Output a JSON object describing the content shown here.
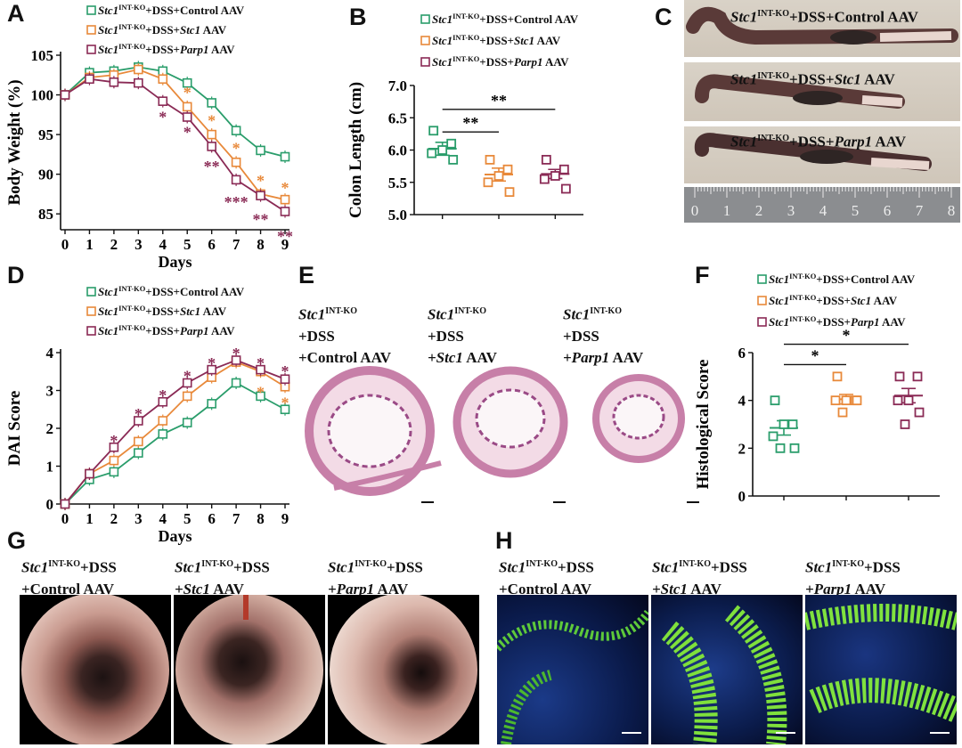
{
  "colors": {
    "control": "#2a9d6b",
    "stc1": "#e8893a",
    "parp1": "#8a2a55"
  },
  "groups": {
    "prefix": "Stc1",
    "sup": "INT-KO",
    "control_suffix": "+DSS+Control AAV",
    "stc1_mid": "+DSS+",
    "stc1_gene": "Stc1",
    "stc1_tail": " AAV",
    "parp1_mid": "+DSS+",
    "parp1_gene": "Parp1",
    "parp1_tail": " AAV"
  },
  "panel_letters": {
    "A": "A",
    "B": "B",
    "C": "C",
    "D": "D",
    "E": "E",
    "F": "F",
    "G": "G",
    "H": "H"
  },
  "chart_data": [
    {
      "id": "A",
      "type": "line",
      "xlabel": "Days",
      "ylabel": "Body Weight (%)",
      "x": [
        0,
        1,
        2,
        3,
        4,
        5,
        6,
        7,
        8,
        9
      ],
      "xlim": [
        0,
        9
      ],
      "ylim": [
        83,
        105
      ],
      "yticks": [
        85,
        90,
        95,
        100,
        105
      ],
      "series": [
        {
          "name": "Control AAV",
          "color": "#2a9d6b",
          "values": [
            100,
            102.8,
            103,
            103.5,
            103,
            101.5,
            99,
            95.5,
            93,
            92.2
          ]
        },
        {
          "name": "Stc1 AAV",
          "color": "#e8893a",
          "values": [
            100,
            102.2,
            102.5,
            103.2,
            102,
            98.5,
            95,
            91.5,
            87.5,
            86.8
          ]
        },
        {
          "name": "Parp1 AAV",
          "color": "#8a2a55",
          "values": [
            100,
            102,
            101.6,
            101.5,
            99.2,
            97.2,
            93.5,
            89.3,
            87.3,
            85.3
          ]
        }
      ],
      "annotations": [
        {
          "x": 4,
          "y": 97.4,
          "text": "*",
          "color": "#8a2a55"
        },
        {
          "x": 5,
          "y": 100.5,
          "text": "*",
          "color": "#e8893a"
        },
        {
          "x": 5,
          "y": 95.5,
          "text": "*",
          "color": "#8a2a55"
        },
        {
          "x": 6,
          "y": 97,
          "text": "*",
          "color": "#e8893a"
        },
        {
          "x": 6,
          "y": 91.2,
          "text": "**",
          "color": "#8a2a55"
        },
        {
          "x": 7,
          "y": 93.5,
          "text": "*",
          "color": "#e8893a"
        },
        {
          "x": 7,
          "y": 86.7,
          "text": "***",
          "color": "#8a2a55"
        },
        {
          "x": 8,
          "y": 89.4,
          "text": "*",
          "color": "#e8893a"
        },
        {
          "x": 8,
          "y": 84.5,
          "text": "**",
          "color": "#8a2a55"
        },
        {
          "x": 9,
          "y": 88.5,
          "text": "*",
          "color": "#e8893a"
        },
        {
          "x": 9,
          "y": 82.4,
          "text": "**",
          "color": "#8a2a55"
        }
      ]
    },
    {
      "id": "B",
      "type": "scatter",
      "ylabel": "Colon Length (cm)",
      "ylim": [
        5.0,
        7.0
      ],
      "yticks": [
        "5.0",
        "5.5",
        "6.0",
        "6.5",
        "7.0"
      ],
      "groups": [
        {
          "name": "Control AAV",
          "color": "#2a9d6b",
          "mean": 6.02,
          "sem": 0.1,
          "points": [
            6.3,
            6.1,
            6.0,
            5.95,
            5.85
          ]
        },
        {
          "name": "Stc1 AAV",
          "color": "#e8893a",
          "mean": 5.62,
          "sem": 0.1,
          "points": [
            5.85,
            5.7,
            5.6,
            5.5,
            5.35
          ]
        },
        {
          "name": "Parp1 AAV",
          "color": "#8a2a55",
          "mean": 5.63,
          "sem": 0.07,
          "points": [
            5.85,
            5.7,
            5.6,
            5.55,
            5.4
          ]
        }
      ],
      "significance": [
        {
          "from": 0,
          "to": 1,
          "y": 6.28,
          "text": "**"
        },
        {
          "from": 0,
          "to": 2,
          "y": 6.63,
          "text": "**"
        }
      ]
    },
    {
      "id": "D",
      "type": "line",
      "xlabel": "Days",
      "ylabel": "DAI Score",
      "x": [
        0,
        1,
        2,
        3,
        4,
        5,
        6,
        7,
        8,
        9
      ],
      "xlim": [
        0,
        9
      ],
      "ylim": [
        0,
        4
      ],
      "yticks": [
        0,
        1,
        2,
        3,
        4
      ],
      "series": [
        {
          "name": "Control AAV",
          "color": "#2a9d6b",
          "values": [
            0,
            0.65,
            0.85,
            1.35,
            1.85,
            2.15,
            2.65,
            3.2,
            2.85,
            2.5
          ]
        },
        {
          "name": "Stc1 AAV",
          "color": "#e8893a",
          "values": [
            0,
            0.8,
            1.15,
            1.65,
            2.2,
            2.85,
            3.35,
            3.75,
            3.5,
            3.1
          ]
        },
        {
          "name": "Parp1 AAV",
          "color": "#8a2a55",
          "values": [
            0,
            0.8,
            1.5,
            2.2,
            2.7,
            3.2,
            3.55,
            3.8,
            3.55,
            3.3
          ]
        }
      ],
      "annotations": [
        {
          "x": 2,
          "y": 1.72,
          "text": "*",
          "color": "#8a2a55"
        },
        {
          "x": 3,
          "y": 2.42,
          "text": "*",
          "color": "#8a2a55"
        },
        {
          "x": 4,
          "y": 2.92,
          "text": "*",
          "color": "#8a2a55"
        },
        {
          "x": 5,
          "y": 3.42,
          "text": "*",
          "color": "#8a2a55"
        },
        {
          "x": 6,
          "y": 3.77,
          "text": "*",
          "color": "#8a2a55"
        },
        {
          "x": 7,
          "y": 4.02,
          "text": "*",
          "color": "#8a2a55"
        },
        {
          "x": 8,
          "y": 3.77,
          "text": "*",
          "color": "#8a2a55"
        },
        {
          "x": 8,
          "y": 3.0,
          "text": "*",
          "color": "#e8893a"
        },
        {
          "x": 9,
          "y": 3.55,
          "text": "*",
          "color": "#8a2a55"
        },
        {
          "x": 9,
          "y": 2.72,
          "text": "*",
          "color": "#e8893a"
        }
      ]
    },
    {
      "id": "F",
      "type": "scatter",
      "ylabel": "Histological Score",
      "ylim": [
        0,
        6
      ],
      "yticks": [
        "0",
        "2",
        "4",
        "6"
      ],
      "groups": [
        {
          "name": "Control AAV",
          "color": "#2a9d6b",
          "mean": 2.85,
          "sem": 0.3,
          "points": [
            4.0,
            3.0,
            3.0,
            2.5,
            2.0,
            2.0
          ]
        },
        {
          "name": "Stc1 AAV",
          "color": "#e8893a",
          "mean": 4.05,
          "sem": 0.2,
          "points": [
            5.0,
            4.0,
            4.0,
            4.0,
            4.0,
            3.5
          ]
        },
        {
          "name": "Parp1 AAV",
          "color": "#8a2a55",
          "mean": 4.2,
          "sem": 0.3,
          "points": [
            5.0,
            5.0,
            4.0,
            4.0,
            3.5,
            3.0
          ]
        }
      ],
      "significance": [
        {
          "from": 0,
          "to": 1,
          "y": 5.5,
          "text": "*"
        },
        {
          "from": 0,
          "to": 2,
          "y": 6.35,
          "text": "*"
        }
      ]
    }
  ],
  "ruler": {
    "numbers": [
      "0",
      "1",
      "2",
      "3",
      "4",
      "5",
      "6",
      "7",
      "8"
    ]
  },
  "photo_captions": {
    "c1": "+DSS+Control AAV",
    "c2_mid": "+DSS+",
    "c2_gene": "Stc1",
    "c2_tail": " AAV",
    "c3_mid": "+DSS+",
    "c3_gene": "Parp1",
    "c3_tail": " AAV"
  },
  "stack_captions": {
    "dss": "+DSS",
    "control": "+Control AAV",
    "stc1_gene": "+Stc1",
    "stc1_tail": " AAV",
    "parp1_gene": "+Parp1",
    "parp1_tail": " AAV"
  }
}
